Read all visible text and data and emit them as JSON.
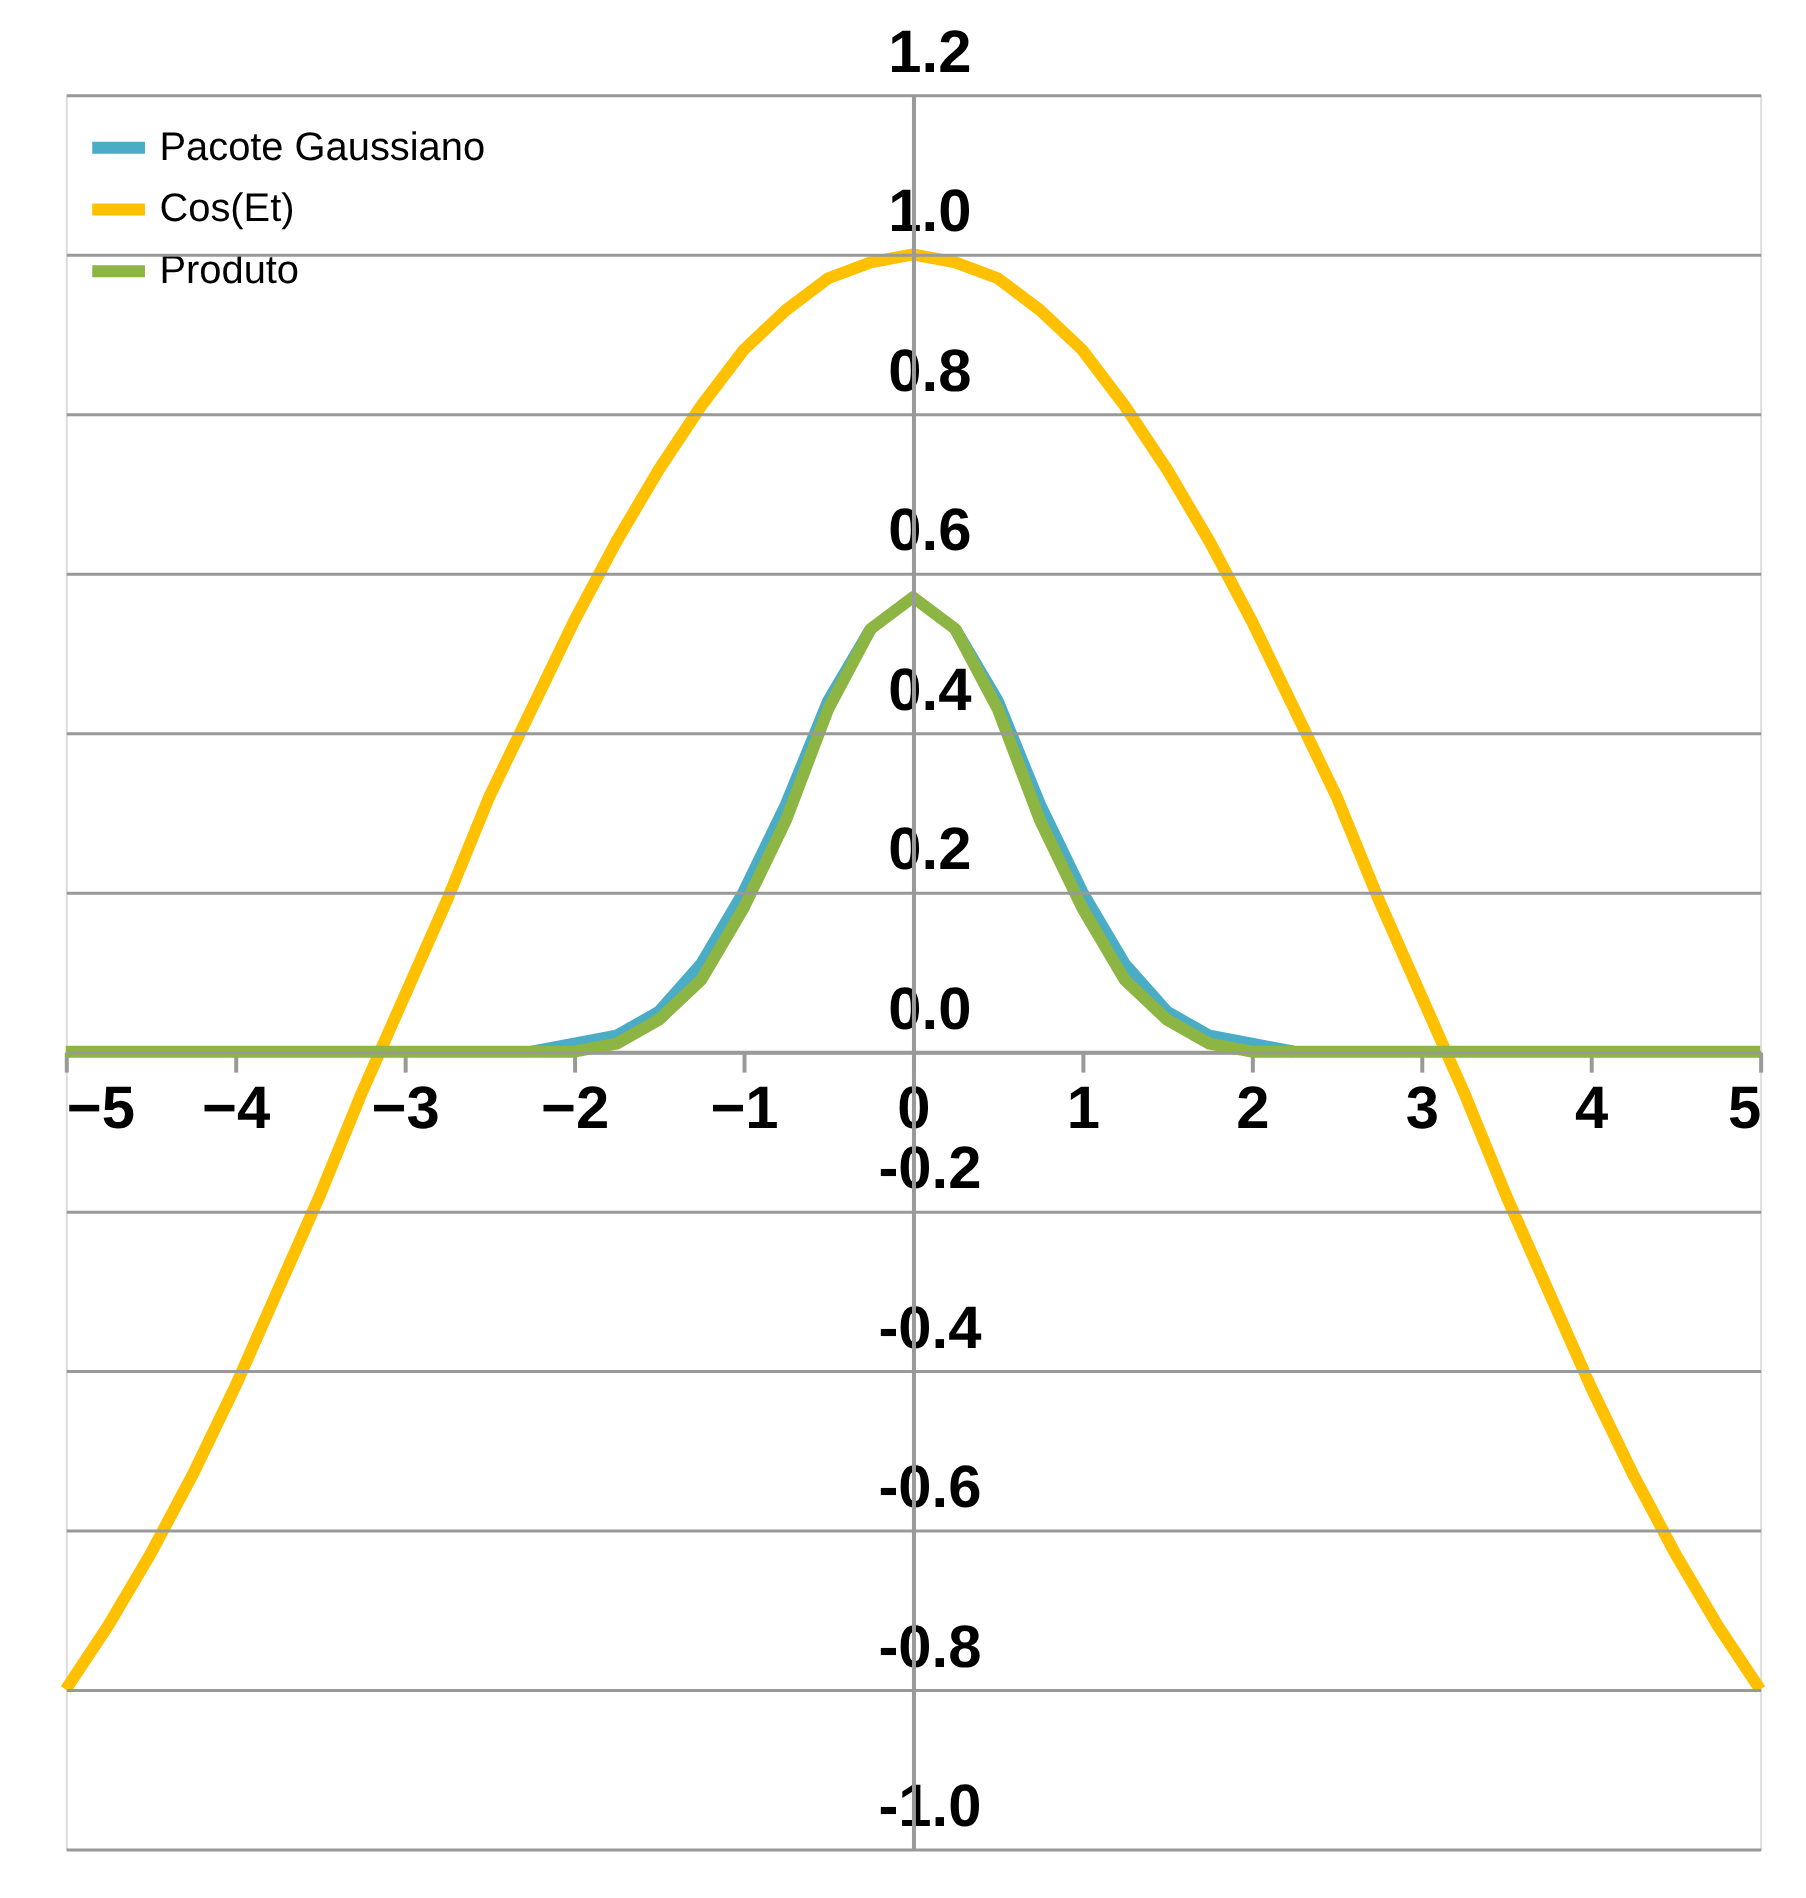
{
  "chart_data": {
    "type": "line",
    "x": [
      -5,
      -4.75,
      -4.5,
      -4.25,
      -4,
      -3.75,
      -3.5,
      -3.25,
      -3,
      -2.75,
      -2.5,
      -2.25,
      -2,
      -1.75,
      -1.5,
      -1.25,
      -1,
      -0.75,
      -0.5,
      -0.25,
      0,
      0.25,
      0.5,
      0.75,
      1,
      1.25,
      1.5,
      1.75,
      2,
      2.25,
      2.5,
      2.75,
      3,
      3.25,
      3.5,
      3.75,
      4,
      4.25,
      4.5,
      4.75,
      5
    ],
    "series": [
      {
        "name": "Pacote Gaussiano",
        "color": "#4bacc6",
        "values": [
          null,
          null,
          null,
          null,
          null,
          null,
          null,
          null,
          null,
          null,
          null,
          0,
          0.01,
          0.02,
          0.05,
          0.11,
          0.2,
          0.31,
          0.44,
          0.53,
          null,
          0.53,
          0.44,
          0.31,
          0.2,
          0.11,
          0.05,
          0.02,
          0.01,
          0,
          null,
          null,
          null,
          null,
          null,
          null,
          null,
          null,
          null,
          null,
          null
        ]
      },
      {
        "name": "Cos(Et)",
        "color": "#ffc000",
        "values": [
          -0.8,
          -0.72,
          -0.63,
          -0.53,
          -0.42,
          -0.3,
          -0.18,
          -0.05,
          0.07,
          0.19,
          0.32,
          0.43,
          0.54,
          0.64,
          0.73,
          0.81,
          0.88,
          0.93,
          0.97,
          0.99,
          1.0,
          0.99,
          0.97,
          0.93,
          0.88,
          0.81,
          0.73,
          0.64,
          0.54,
          0.43,
          0.32,
          0.19,
          0.07,
          -0.05,
          -0.18,
          -0.3,
          -0.42,
          -0.53,
          -0.63,
          -0.72,
          -0.8
        ]
      },
      {
        "name": "Produto",
        "color": "#8db543",
        "values": [
          0,
          0,
          0,
          0,
          0,
          0,
          0,
          0,
          0,
          0,
          0,
          0,
          0,
          0.01,
          0.04,
          0.09,
          0.18,
          0.29,
          0.43,
          0.53,
          0.57,
          0.53,
          0.43,
          0.29,
          0.18,
          0.09,
          0.04,
          0.01,
          0,
          0,
          0,
          0,
          0,
          0,
          0,
          0,
          0,
          0,
          0,
          0,
          0
        ]
      }
    ],
    "xlim": [
      -5,
      5
    ],
    "xticks": [
      -5,
      -4,
      -3,
      -2,
      -1,
      0,
      1,
      2,
      3,
      4,
      5
    ],
    "ylim": [
      -1.0,
      1.2
    ],
    "yticks": [
      {
        "value": -1,
        "label": "-1.0"
      },
      {
        "value": -0.8,
        "label": "-0.8"
      },
      {
        "value": -0.6,
        "label": "-0.6"
      },
      {
        "value": -0.4,
        "label": "-0.4"
      },
      {
        "value": -0.2,
        "label": "-0.2"
      },
      {
        "value": 0,
        "label": "0.0"
      },
      {
        "value": 0.2,
        "label": "0.2"
      },
      {
        "value": 0.4,
        "label": "0.4"
      },
      {
        "value": 0.6,
        "label": "0.6"
      },
      {
        "value": 0.8,
        "label": "0.8"
      },
      {
        "value": 1,
        "label": "1.0"
      },
      {
        "value": 1.2,
        "label": "1.2"
      }
    ],
    "grid": "y",
    "legend": "top left",
    "marker": "none",
    "line_style": "solid"
  }
}
